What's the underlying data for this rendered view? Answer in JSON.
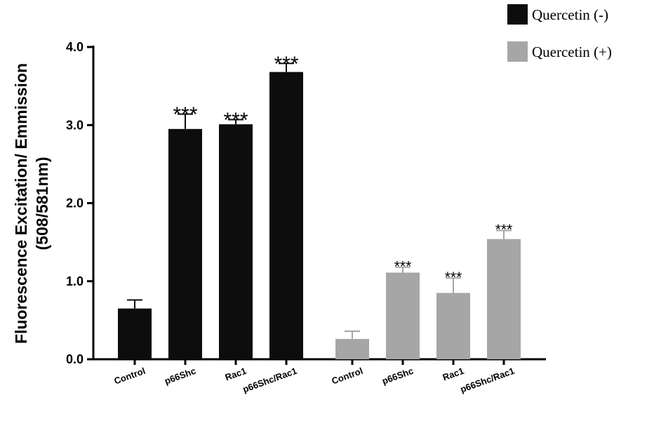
{
  "chart_data": {
    "type": "bar",
    "ylabel_lines": [
      "Fluorescence Excitation/ Emmission",
      "(508/581nm)"
    ],
    "ylim": [
      0,
      4.0
    ],
    "y_ticks": [
      "0.0",
      "1.0",
      "2.0",
      "3.0",
      "4.0"
    ],
    "grid": false,
    "legend_position": "top-right",
    "series": [
      {
        "name": "Quercetin (-)",
        "color": "#0d0d0d",
        "categories": [
          "Control",
          "p66Shc",
          "Rac1",
          "p66Shc/Rac1"
        ],
        "values": [
          0.65,
          2.95,
          3.01,
          3.68
        ],
        "errors": [
          0.11,
          0.19,
          0.06,
          0.11
        ],
        "significance": [
          "",
          "***",
          "***",
          "***"
        ]
      },
      {
        "name": "Quercetin (+)",
        "color": "#a6a6a6",
        "categories": [
          "Control",
          "p66Shc",
          "Rac1",
          "p66Shc/Rac1"
        ],
        "values": [
          0.26,
          1.11,
          0.85,
          1.54
        ],
        "errors": [
          0.1,
          0.07,
          0.19,
          0.11
        ],
        "significance": [
          "",
          "***",
          "***",
          "***"
        ]
      }
    ]
  }
}
